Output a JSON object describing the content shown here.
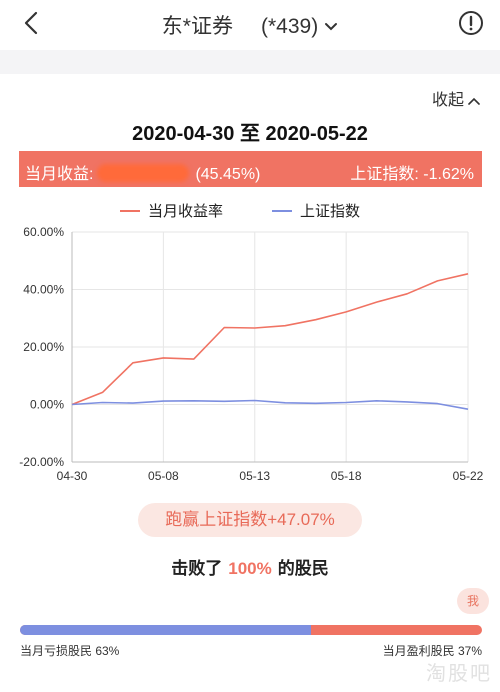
{
  "header": {
    "title": "东*证券",
    "account": "(*439)"
  },
  "collapse_label": "收起",
  "period": "2020-04-30 至 2020-05-22",
  "banner": {
    "income_label": "当月收益:",
    "income_pct": "(45.45%)",
    "index_text": "上证指数: -1.62%"
  },
  "colors": {
    "profit": "#f07363",
    "index": "#7d8fe0",
    "banner_bg": "#f07363"
  },
  "chart_data": {
    "type": "line",
    "x": [
      "04-30",
      "05-06",
      "05-07",
      "05-08",
      "05-11",
      "05-12",
      "05-13",
      "05-14",
      "05-15",
      "05-18",
      "05-19",
      "05-20",
      "05-21",
      "05-22"
    ],
    "xticks": [
      "04-30",
      "05-08",
      "05-13",
      "05-18",
      "05-22"
    ],
    "yticks": [
      "60.00%",
      "40.00%",
      "20.00%",
      "0.00%",
      "-20.00%"
    ],
    "ylim": [
      -20,
      60
    ],
    "grid": true,
    "legend_position": "top",
    "series": [
      {
        "name": "当月收益率",
        "color": "#f07363",
        "values": [
          0,
          4.2,
          14.5,
          16.2,
          15.8,
          26.8,
          26.6,
          27.4,
          29.5,
          32.2,
          35.6,
          38.5,
          43.0,
          45.45
        ]
      },
      {
        "name": "上证指数",
        "color": "#7d8fe0",
        "values": [
          0,
          0.7,
          0.5,
          1.2,
          1.3,
          1.1,
          1.4,
          0.6,
          0.4,
          0.7,
          1.3,
          0.9,
          0.3,
          -1.62
        ]
      }
    ]
  },
  "outperform_text": "跑赢上证指数+47.07%",
  "beat": {
    "prefix": "击败了",
    "pct": "100%",
    "suffix": "的股民"
  },
  "distribution": {
    "me_label": "我",
    "loss_fraction": 0.63,
    "loss_label": "当月亏损股民 63%",
    "profit_label": "当月盈利股民 37%"
  },
  "watermark": "淘股吧"
}
